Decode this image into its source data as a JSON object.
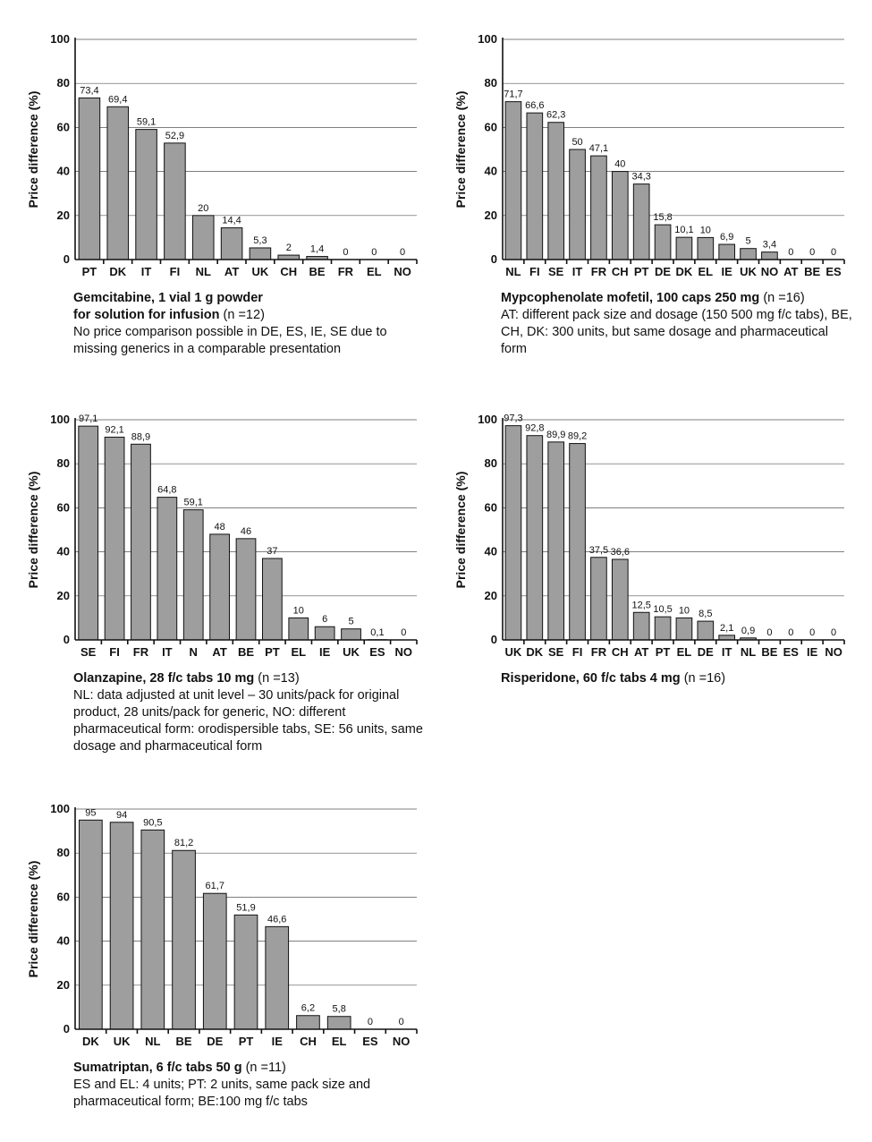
{
  "chart_data": [
    {
      "type": "bar",
      "ylabel": "Price difference (%)",
      "ylim": [
        0,
        100
      ],
      "yticks": [
        0,
        20,
        40,
        60,
        80,
        100
      ],
      "grid": true,
      "categories": [
        "PT",
        "DK",
        "IT",
        "FI",
        "NL",
        "AT",
        "UK",
        "CH",
        "BE",
        "FR",
        "EL",
        "NO"
      ],
      "values": [
        73.4,
        69.4,
        59.1,
        52.9,
        20,
        14.4,
        5.3,
        2,
        1.4,
        0,
        0,
        0
      ],
      "value_labels": [
        "73,4",
        "69,4",
        "59,1",
        "52,9",
        "20",
        "14,4",
        "5,3",
        "2",
        "1,4",
        "0",
        "0",
        "0"
      ],
      "caption_title": "Gemcitabine, 1 vial 1 g powder",
      "caption_title2": "for solution for infusion",
      "caption_n": "(n =12)",
      "caption_note": "No price comparison possible in DE, ES, IE, SE due to missing generics in a comparable presentation"
    },
    {
      "type": "bar",
      "ylabel": "Price difference (%)",
      "ylim": [
        0,
        100
      ],
      "yticks": [
        0,
        20,
        40,
        60,
        80,
        100
      ],
      "grid": true,
      "categories": [
        "NL",
        "FI",
        "SE",
        "IT",
        "FR",
        "CH",
        "PT",
        "DE",
        "DK",
        "EL",
        "IE",
        "UK",
        "NO",
        "AT",
        "BE",
        "ES"
      ],
      "values": [
        71.7,
        66.6,
        62.3,
        50,
        47.1,
        40,
        34.3,
        15.8,
        10.1,
        10,
        6.9,
        5,
        3.4,
        0,
        0,
        0
      ],
      "value_labels": [
        "71,7",
        "66,6",
        "62,3",
        "50",
        "47,1",
        "40",
        "34,3",
        "15,8",
        "10,1",
        "10",
        "6,9",
        "5",
        "3,4",
        "0",
        "0",
        "0"
      ],
      "caption_title": "Mypcophenolate mofetil, 100 caps 250 mg",
      "caption_title2": "",
      "caption_n": "(n =16)",
      "caption_note": "AT: different pack size and dosage (150 500 mg f/c tabs), BE, CH, DK: 300 units, but same dosage and pharmaceutical form"
    },
    {
      "type": "bar",
      "ylabel": "Price difference (%)",
      "ylim": [
        0,
        100
      ],
      "yticks": [
        0,
        20,
        40,
        60,
        80,
        100
      ],
      "grid": true,
      "categories": [
        "SE",
        "FI",
        "FR",
        "IT",
        "N",
        "AT",
        "BE",
        "PT",
        "EL",
        "IE",
        "UK",
        "ES",
        "NO"
      ],
      "values": [
        97.1,
        92.1,
        88.9,
        64.8,
        59.1,
        48,
        46,
        37,
        10,
        6,
        5,
        0.1,
        0
      ],
      "value_labels": [
        "97,1",
        "92,1",
        "88,9",
        "64,8",
        "59,1",
        "48",
        "46",
        "37",
        "10",
        "6",
        "5",
        "0,1",
        "0"
      ],
      "caption_title": "Olanzapine, 28 f/c tabs 10 mg",
      "caption_title2": "",
      "caption_n": "(n =13)",
      "caption_note": "NL: data adjusted at unit level – 30 units/pack for original product, 28 units/pack for generic, NO: different pharmaceutical form: orodispersible tabs, SE: 56 units, same dosage and pharmaceutical form"
    },
    {
      "type": "bar",
      "ylabel": "Price difference (%)",
      "ylim": [
        0,
        100
      ],
      "yticks": [
        0,
        20,
        40,
        60,
        80,
        100
      ],
      "grid": true,
      "categories": [
        "UK",
        "DK",
        "SE",
        "FI",
        "FR",
        "CH",
        "AT",
        "PT",
        "EL",
        "DE",
        "IT",
        "NL",
        "BE",
        "ES",
        "IE",
        "NO"
      ],
      "values": [
        97.3,
        92.8,
        89.9,
        89.2,
        37.5,
        36.6,
        12.5,
        10.5,
        10,
        8.5,
        2.1,
        0.9,
        0,
        0,
        0,
        0
      ],
      "value_labels": [
        "97,3",
        "92,8",
        "89,9",
        "89,2",
        "37,5",
        "36,6",
        "12,5",
        "10,5",
        "10",
        "8,5",
        "2,1",
        "0,9",
        "0",
        "0",
        "0",
        "0"
      ],
      "caption_title": "Risperidone, 60 f/c tabs 4 mg",
      "caption_title2": "",
      "caption_n": "(n =16)",
      "caption_note": ""
    },
    {
      "type": "bar",
      "ylabel": "Price difference (%)",
      "ylim": [
        0,
        100
      ],
      "yticks": [
        0,
        20,
        40,
        60,
        80,
        100
      ],
      "grid": true,
      "categories": [
        "DK",
        "UK",
        "NL",
        "BE",
        "DE",
        "PT",
        "IE",
        "CH",
        "EL",
        "ES",
        "NO"
      ],
      "values": [
        95,
        94,
        90.5,
        81.2,
        61.7,
        51.9,
        46.6,
        6.2,
        5.8,
        0,
        0
      ],
      "value_labels": [
        "95",
        "94",
        "90,5",
        "81,2",
        "61,7",
        "51,9",
        "46,6",
        "6,2",
        "5,8",
        "0",
        "0"
      ],
      "caption_title": "Sumatriptan, 6 f/c tabs 50 g",
      "caption_title2": "",
      "caption_n": "(n =11)",
      "caption_note": "ES and EL: 4 units; PT: 2 units, same pack size and pharmaceutical form; BE:100 mg f/c tabs"
    }
  ],
  "colors": {
    "bar": "#9e9e9e",
    "bar_outline": "#111111",
    "grid": "#555555"
  }
}
